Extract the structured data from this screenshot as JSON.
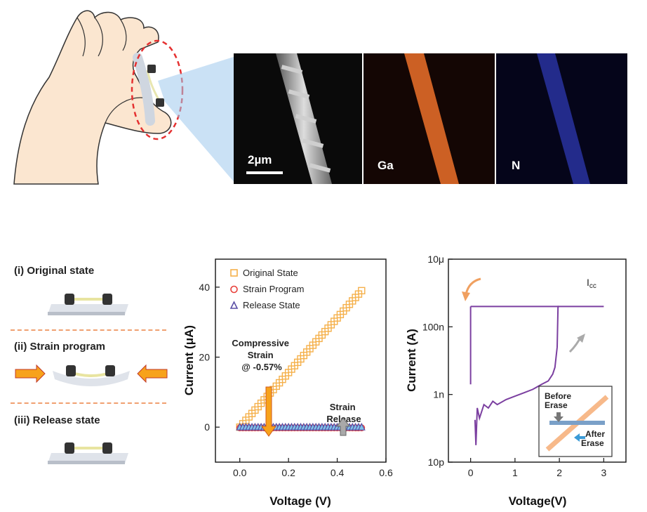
{
  "sem": {
    "scale_bar": "2µm",
    "panels": [
      {
        "label": ""
      },
      {
        "label": "Ga"
      },
      {
        "label": "N"
      }
    ]
  },
  "states": [
    {
      "label": "(i)   Original state"
    },
    {
      "label": "(ii)  Strain program"
    },
    {
      "label": "(iii) Release state"
    }
  ],
  "colors": {
    "original": "#f5b04a",
    "strain": "#e8403a",
    "release": "#5b4fa6",
    "purple_curve": "#7b3fa0",
    "arrow_orange": "#f7a21b",
    "arrow_gray": "#9a9a9a"
  },
  "chart_data": [
    {
      "type": "scatter",
      "xlabel": "Voltage (V)",
      "ylabel": "Current (μA)",
      "xlim": [
        -0.1,
        0.6
      ],
      "ylim": [
        -10,
        48
      ],
      "xticks": [
        {
          "value": 0.0,
          "label": "0.0"
        },
        {
          "value": 0.2,
          "label": "0.2"
        },
        {
          "value": 0.4,
          "label": "0.4"
        },
        {
          "value": 0.6,
          "label": "0.6"
        }
      ],
      "yticks": [
        {
          "value": 0,
          "label": "0"
        },
        {
          "value": 20,
          "label": "20"
        },
        {
          "value": 40,
          "label": "40"
        }
      ],
      "legend_position": "top-left",
      "series": [
        {
          "name": "Original State",
          "marker": "square",
          "color": "#f5b04a",
          "x": [
            0.0,
            0.5
          ],
          "y": [
            0,
            39
          ]
        },
        {
          "name": "Strain Program",
          "marker": "circle",
          "color": "#e8403a",
          "x": [
            0.0,
            0.5
          ],
          "y": [
            0,
            0
          ]
        },
        {
          "name": "Release State",
          "marker": "triangle",
          "color": "#5b4fa6",
          "x": [
            0.0,
            0.5
          ],
          "y": [
            0,
            0
          ]
        }
      ],
      "annotations": [
        {
          "text": "Compressive Strain @ -0.57%"
        },
        {
          "text": "Strain Release"
        }
      ]
    },
    {
      "type": "line",
      "xlabel": "Voltage(V)",
      "ylabel": "Current (A)",
      "xlim": [
        -0.5,
        3.5
      ],
      "ylim_log10": [
        -11,
        -5
      ],
      "xticks": [
        {
          "value": 0,
          "label": "0"
        },
        {
          "value": 1,
          "label": "1"
        },
        {
          "value": 2,
          "label": "2"
        },
        {
          "value": 3,
          "label": "3"
        }
      ],
      "yticks": [
        {
          "value": -11,
          "label": "10p"
        },
        {
          "value": -9,
          "label": "1n"
        },
        {
          "value": -7,
          "label": "100n"
        },
        {
          "value": -5,
          "label": "10μ"
        }
      ],
      "compliance_label": "I",
      "compliance_sub": "cc",
      "sweep_up": {
        "x": [
          0.1,
          0.12,
          0.15,
          0.2,
          0.3,
          0.4,
          0.5,
          0.6,
          0.8,
          1.0,
          1.2,
          1.4,
          1.6,
          1.75,
          1.85,
          1.9,
          1.95,
          1.97,
          2.0
        ],
        "log10_y": [
          -9.75,
          -10.5,
          -9.4,
          -9.7,
          -9.3,
          -9.4,
          -9.2,
          -9.3,
          -9.15,
          -9.05,
          -8.95,
          -8.85,
          -8.7,
          -8.6,
          -8.4,
          -8.2,
          -7.6,
          -6.4,
          -6.4
        ]
      },
      "compliance": {
        "x": [
          0.0,
          3.0
        ],
        "log10_y": -6.4
      },
      "sweep_down": {
        "x": [
          0.0,
          0.0
        ],
        "log10_y": [
          -6.4,
          -8.7
        ]
      },
      "inset": {
        "before_label": "Before Erase",
        "after_label": "After Erase"
      }
    }
  ]
}
